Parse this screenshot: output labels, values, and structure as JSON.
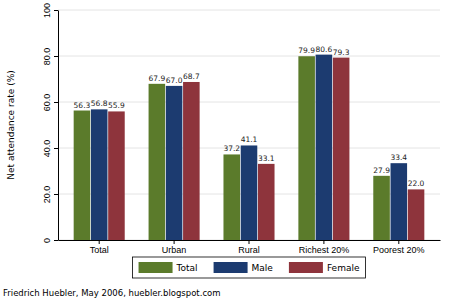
{
  "chart_data": {
    "type": "bar",
    "y_label": "Net attendance rate (%)",
    "annotation": "Friedrich Huebler, May 2006, huebler.blogspot.com",
    "categories": [
      "Total",
      "Urban",
      "Rural",
      "Richest 20%",
      "Poorest 20%"
    ],
    "series": [
      {
        "name": "Total",
        "color": "#5b7b2b",
        "values": [
          56.3,
          67.9,
          37.2,
          79.9,
          27.9
        ],
        "value_labels": [
          "56.3",
          "67.9",
          "37.2",
          "79.9",
          "27.9"
        ]
      },
      {
        "name": "Male",
        "color": "#1c3b70",
        "values": [
          56.8,
          67.0,
          41.1,
          80.6,
          33.4
        ],
        "value_labels": [
          "56.8",
          "67.0",
          "41.1",
          "80.6",
          "33.4"
        ]
      },
      {
        "name": "Female",
        "color": "#8e343c",
        "values": [
          55.9,
          68.7,
          33.1,
          79.3,
          22.0
        ],
        "value_labels": [
          "55.9",
          "68.7",
          "33.1",
          "79.3",
          "22.0"
        ]
      }
    ],
    "ylim": [
      0,
      100
    ],
    "yticks": [
      0,
      {
        "value": 20,
        "label": "20.0"
      },
      {
        "value": 40,
        "label": "40.0"
      },
      {
        "value": 60,
        "label": "60.0"
      },
      {
        "value": 80,
        "label": "80.0"
      },
      100
    ],
    "grid": true,
    "data_labels": true,
    "legend": "bottom"
  }
}
